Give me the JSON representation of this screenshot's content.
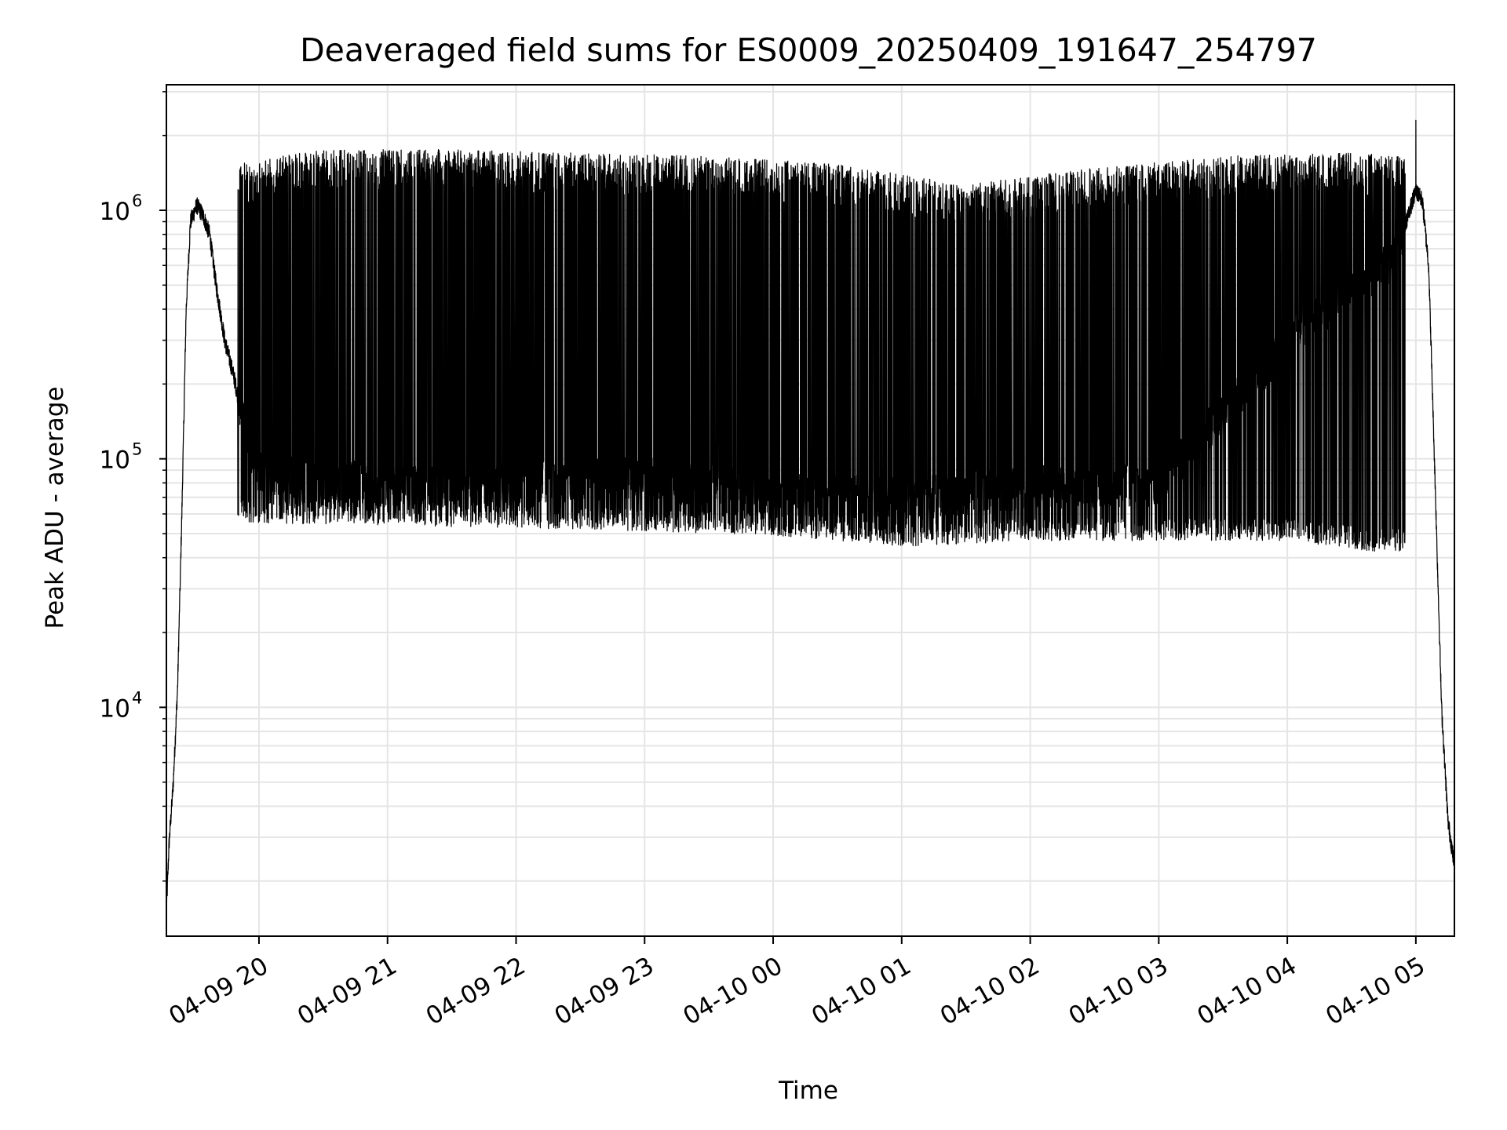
{
  "chart_data": {
    "type": "line",
    "title": "Deaveraged field sums for ES0009_20250409_191647_254797",
    "xlabel": "Time",
    "ylabel": "Peak ADU - average",
    "yscale": "log",
    "ylim": [
      1200,
      3200000
    ],
    "xlim": [
      "2025-04-09 19:16:47",
      "2025-04-10 05:18:00"
    ],
    "grid": true,
    "line_color": "#000000",
    "grid_color": "#e5e5e5",
    "x_ticks": [
      {
        "value": "2025-04-09 20:00",
        "label": "04-09 20"
      },
      {
        "value": "2025-04-09 21:00",
        "label": "04-09 21"
      },
      {
        "value": "2025-04-09 22:00",
        "label": "04-09 22"
      },
      {
        "value": "2025-04-09 23:00",
        "label": "04-09 23"
      },
      {
        "value": "2025-04-10 00:00",
        "label": "04-10 00"
      },
      {
        "value": "2025-04-10 01:00",
        "label": "04-10 01"
      },
      {
        "value": "2025-04-10 02:00",
        "label": "04-10 02"
      },
      {
        "value": "2025-04-10 03:00",
        "label": "04-10 03"
      },
      {
        "value": "2025-04-10 04:00",
        "label": "04-10 04"
      },
      {
        "value": "2025-04-10 05:00",
        "label": "04-10 05"
      }
    ],
    "y_ticks": [
      {
        "value": 10000,
        "base": "10",
        "exp": "4"
      },
      {
        "value": 100000,
        "base": "10",
        "exp": "5"
      },
      {
        "value": 1000000,
        "base": "10",
        "exp": "6"
      }
    ],
    "series": [
      {
        "points": [
          [
            "2025-04-09 19:16:47",
            1500
          ],
          [
            "2025-04-09 19:18:00",
            2800
          ],
          [
            "2025-04-09 19:20:00",
            5000
          ],
          [
            "2025-04-09 19:22:00",
            12000
          ],
          [
            "2025-04-09 19:24:00",
            60000
          ],
          [
            "2025-04-09 19:26:00",
            400000
          ],
          [
            "2025-04-09 19:28:00",
            900000
          ],
          [
            "2025-04-09 19:31:00",
            1050000
          ],
          [
            "2025-04-09 19:34:00",
            950000
          ],
          [
            "2025-04-09 19:37:00",
            800000
          ],
          [
            "2025-04-09 19:40:00",
            500000
          ],
          [
            "2025-04-09 19:44:00",
            300000
          ],
          [
            "2025-04-09 19:48:00",
            220000
          ],
          [
            "2025-04-09 19:52:00",
            150000
          ],
          [
            "2025-04-09 19:56:00",
            110000
          ],
          [
            "2025-04-09 20:00:00",
            90000
          ],
          [
            "2025-04-09 20:30:00",
            85000
          ],
          [
            "2025-04-09 21:00:00",
            80000
          ],
          [
            "2025-04-09 22:00:00",
            82000
          ],
          [
            "2025-04-09 23:00:00",
            85000
          ],
          [
            "2025-04-10 00:00:00",
            75000
          ],
          [
            "2025-04-10 01:00:00",
            70000
          ],
          [
            "2025-04-10 02:00:00",
            78000
          ],
          [
            "2025-04-10 03:00:00",
            80000
          ],
          [
            "2025-04-10 04:00:00",
            300000
          ],
          [
            "2025-04-10 04:30:00",
            500000
          ],
          [
            "2025-04-10 04:50:00",
            650000
          ],
          [
            "2025-04-10 05:00:00",
            1200000
          ],
          [
            "2025-04-10 05:03:00",
            1100000
          ],
          [
            "2025-04-10 05:06:00",
            600000
          ],
          [
            "2025-04-10 05:09:00",
            80000
          ],
          [
            "2025-04-10 05:12:00",
            10000
          ],
          [
            "2025-04-10 05:15:00",
            3500
          ],
          [
            "2025-04-10 05:18:00",
            2300
          ]
        ],
        "spike_upper_envelope": [
          [
            "2025-04-09 19:50:00",
            1400000
          ],
          [
            "2025-04-09 20:30:00",
            1600000
          ],
          [
            "2025-04-09 21:30:00",
            1600000
          ],
          [
            "2025-04-09 22:30:00",
            1550000
          ],
          [
            "2025-04-09 23:30:00",
            1500000
          ],
          [
            "2025-04-10 00:30:00",
            1400000
          ],
          [
            "2025-04-10 01:30:00",
            1150000
          ],
          [
            "2025-04-10 02:30:00",
            1350000
          ],
          [
            "2025-04-10 03:30:00",
            1500000
          ],
          [
            "2025-04-10 04:30:00",
            1550000
          ],
          [
            "2025-04-10 04:55:00",
            1500000
          ]
        ],
        "spike_lower_floor": [
          [
            "2025-04-09 20:00:00",
            65000
          ],
          [
            "2025-04-09 22:00:00",
            62000
          ],
          [
            "2025-04-10 00:00:00",
            58000
          ],
          [
            "2025-04-10 01:00:00",
            52000
          ],
          [
            "2025-04-10 02:00:00",
            55000
          ],
          [
            "2025-04-10 03:00:00",
            55000
          ],
          [
            "2025-04-10 04:00:00",
            55000
          ],
          [
            "2025-04-10 04:40:00",
            50000
          ]
        ],
        "peak_max": [
          "2025-04-10 05:00:00",
          2300000
        ],
        "peak_min": [
          "2025-04-10 01:40:00",
          42000
        ]
      }
    ]
  }
}
